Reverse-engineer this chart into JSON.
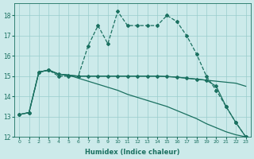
{
  "xlabel": "Humidex (Indice chaleur)",
  "bg_color": "#cceaea",
  "grid_color": "#99cccc",
  "line_color": "#1a7060",
  "xlim": [
    -0.5,
    23.5
  ],
  "ylim": [
    12,
    18.6
  ],
  "yticks": [
    12,
    13,
    14,
    15,
    16,
    17,
    18
  ],
  "xticks": [
    0,
    1,
    2,
    3,
    4,
    5,
    6,
    7,
    8,
    9,
    10,
    11,
    12,
    13,
    14,
    15,
    16,
    17,
    18,
    19,
    20,
    21,
    22,
    23
  ],
  "line1_x": [
    0,
    1,
    2,
    3,
    4,
    5,
    6,
    7,
    8,
    9,
    10,
    11,
    12,
    13,
    14,
    15,
    16,
    17,
    18,
    19,
    20,
    21,
    22,
    23
  ],
  "line1_y": [
    13.1,
    13.2,
    15.2,
    15.3,
    15.0,
    15.0,
    15.0,
    16.5,
    17.5,
    16.6,
    18.2,
    17.5,
    17.5,
    17.5,
    17.5,
    18.0,
    17.7,
    17.0,
    16.1,
    15.0,
    14.3,
    13.5,
    12.7,
    12.0
  ],
  "line2_x": [
    0,
    1,
    2,
    3,
    4,
    5,
    6,
    7,
    8,
    9,
    10,
    11,
    12,
    13,
    14,
    15,
    16,
    17,
    18,
    19,
    20,
    21,
    22,
    23
  ],
  "line2_y": [
    13.1,
    13.2,
    15.2,
    15.3,
    15.1,
    15.05,
    15.0,
    15.0,
    15.0,
    15.0,
    15.0,
    15.0,
    15.0,
    15.0,
    15.0,
    14.98,
    14.95,
    14.9,
    14.85,
    14.8,
    14.75,
    14.7,
    14.65,
    14.5
  ],
  "line3_x": [
    2,
    3,
    4,
    5,
    6,
    7,
    8,
    9,
    10,
    11,
    12,
    13,
    14,
    15,
    16,
    17,
    18,
    19,
    20,
    21,
    22,
    23
  ],
  "line3_y": [
    15.2,
    15.3,
    15.1,
    15.05,
    14.9,
    14.75,
    14.6,
    14.45,
    14.3,
    14.1,
    13.95,
    13.8,
    13.65,
    13.5,
    13.3,
    13.1,
    12.9,
    12.65,
    12.45,
    12.25,
    12.1,
    12.0
  ],
  "line4_x": [
    0,
    1,
    2,
    3,
    4,
    5,
    6,
    7,
    8,
    9,
    10,
    11,
    12,
    13,
    14,
    15,
    16,
    17,
    18,
    19,
    20,
    21,
    22,
    23
  ],
  "line4_y": [
    13.1,
    13.2,
    15.2,
    15.3,
    15.1,
    15.05,
    15.0,
    15.0,
    15.0,
    15.0,
    15.0,
    15.0,
    15.0,
    15.0,
    15.0,
    14.98,
    14.95,
    14.9,
    14.85,
    14.8,
    14.5,
    13.5,
    12.7,
    12.0
  ]
}
